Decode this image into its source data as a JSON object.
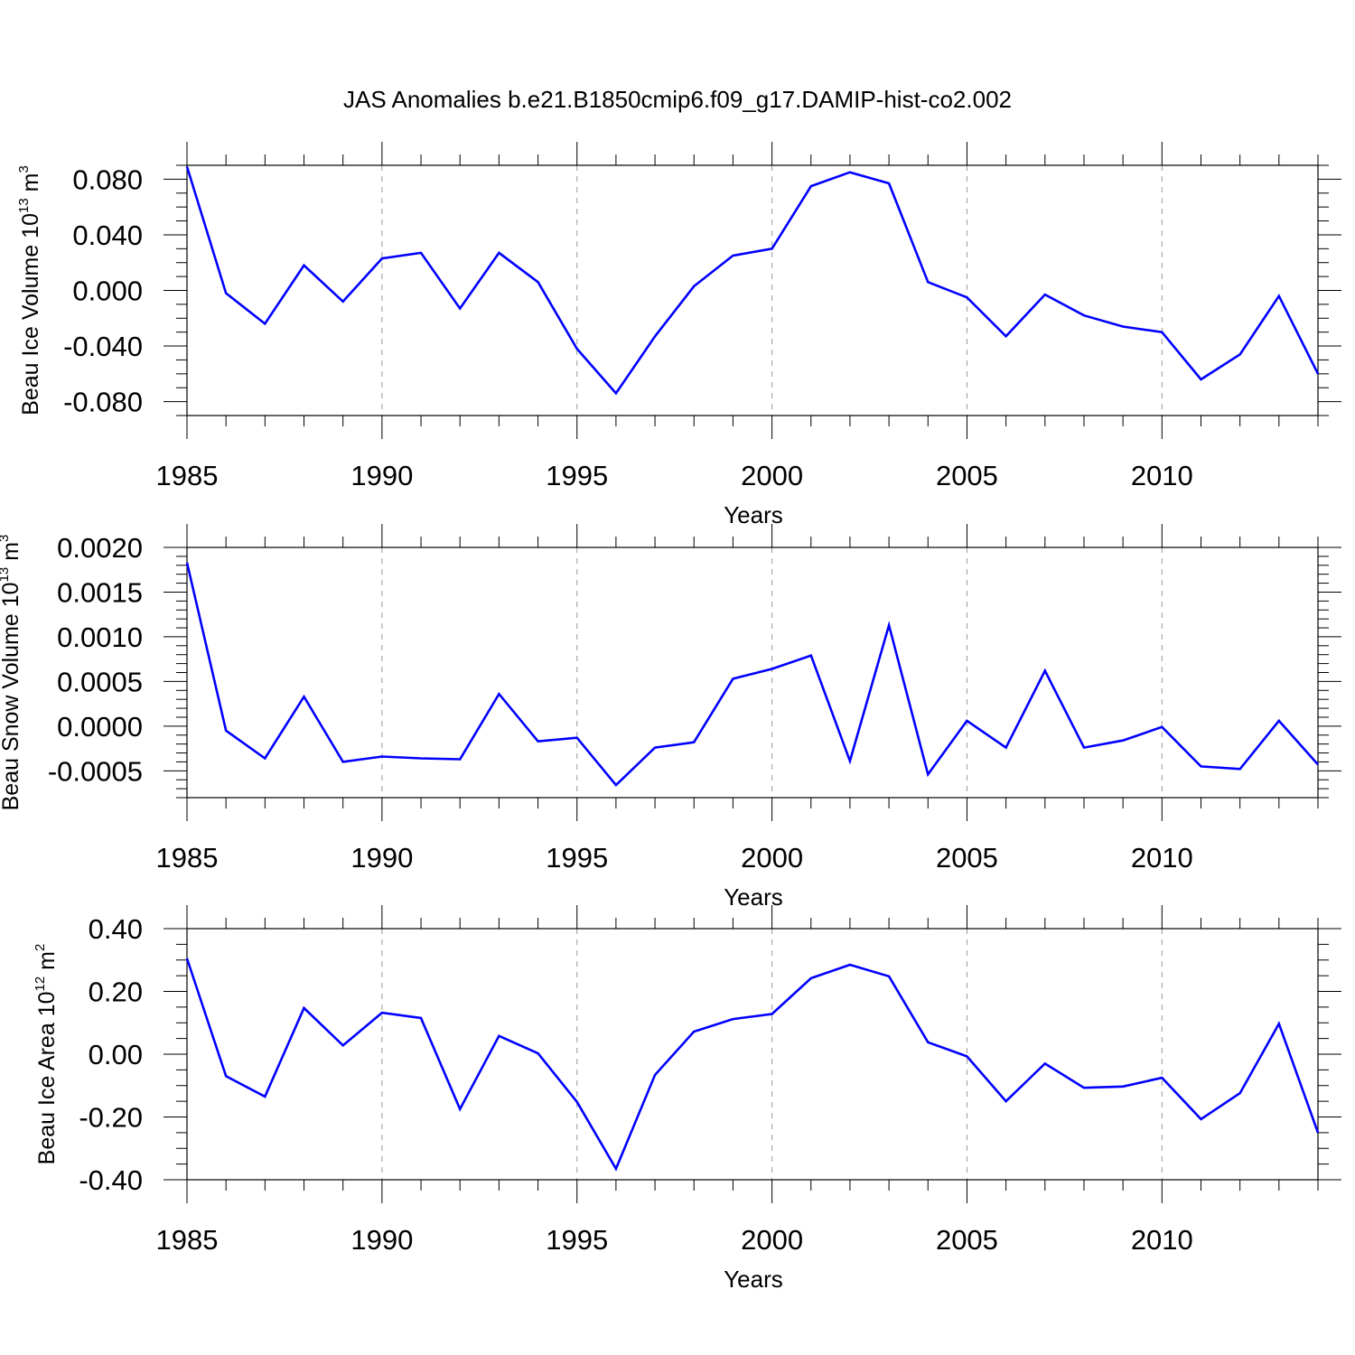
{
  "figure_title": "JAS Anomalies b.e21.B1850cmip6.f09_g17.DAMIP-hist-co2.002",
  "colors": {
    "line": "#0000ff",
    "axes": "#000000",
    "grid": "#9a9a9a"
  },
  "chart_data": [
    {
      "type": "line",
      "id": "ice-volume",
      "title": "",
      "xlabel": "Years",
      "ylabel": {
        "text": "Beau Ice Volume 10",
        "exponent": "13",
        "unit": " m",
        "unit_exponent": "3"
      },
      "xlim": [
        1985,
        2014
      ],
      "ylim": [
        -0.09,
        0.09
      ],
      "x_ticks": [
        1985,
        1990,
        1995,
        2000,
        2005,
        2010
      ],
      "x_tick_labels": [
        "1985",
        "1990",
        "1995",
        "2000",
        "2005",
        "2010"
      ],
      "y_ticks": [
        0.08,
        0.04,
        0.0,
        -0.04,
        -0.08
      ],
      "y_tick_labels": [
        "0.080",
        "0.040",
        "0.000",
        "-0.040",
        "-0.080"
      ],
      "y_minor_step": 0.01,
      "grid": "dashed vertical at major x ticks",
      "series": [
        {
          "name": "Beau Ice Volume",
          "x": [
            1985,
            1986,
            1987,
            1988,
            1989,
            1990,
            1991,
            1992,
            1993,
            1994,
            1995,
            1996,
            1997,
            1998,
            1999,
            2000,
            2001,
            2002,
            2003,
            2004,
            2005,
            2006,
            2007,
            2008,
            2009,
            2010,
            2011,
            2012,
            2013,
            2014
          ],
          "values": [
            0.089,
            -0.002,
            -0.024,
            0.018,
            -0.008,
            0.023,
            0.027,
            -0.013,
            0.027,
            0.006,
            -0.042,
            -0.074,
            -0.033,
            0.003,
            0.025,
            0.03,
            0.075,
            0.085,
            0.077,
            0.006,
            -0.005,
            -0.033,
            -0.003,
            -0.018,
            -0.026,
            -0.03,
            -0.064,
            -0.046,
            -0.004,
            -0.06
          ]
        }
      ]
    },
    {
      "type": "line",
      "id": "snow-volume",
      "title": "",
      "xlabel": "Years",
      "ylabel": {
        "text": "Beau Snow Volume 10",
        "exponent": "13",
        "unit": " m",
        "unit_exponent": "3"
      },
      "xlim": [
        1985,
        2014
      ],
      "ylim": [
        -0.0008,
        0.002
      ],
      "x_ticks": [
        1985,
        1990,
        1995,
        2000,
        2005,
        2010
      ],
      "x_tick_labels": [
        "1985",
        "1990",
        "1995",
        "2000",
        "2005",
        "2010"
      ],
      "y_ticks": [
        0.002,
        0.0015,
        0.001,
        0.0005,
        0.0,
        -0.0005
      ],
      "y_tick_labels": [
        "0.0020",
        "0.0015",
        "0.0010",
        "0.0005",
        "0.0000",
        "-0.0005"
      ],
      "y_minor_step": 0.0001,
      "grid": "dashed vertical at major x ticks",
      "series": [
        {
          "name": "Beau Snow Volume",
          "x": [
            1985,
            1986,
            1987,
            1988,
            1989,
            1990,
            1991,
            1992,
            1993,
            1994,
            1995,
            1996,
            1997,
            1998,
            1999,
            2000,
            2001,
            2002,
            2003,
            2004,
            2005,
            2006,
            2007,
            2008,
            2009,
            2010,
            2011,
            2012,
            2013,
            2014
          ],
          "values": [
            0.00183,
            -5e-05,
            -0.00036,
            0.00033,
            -0.0004,
            -0.00034,
            -0.00036,
            -0.00037,
            0.00036,
            -0.00017,
            -0.00013,
            -0.00066,
            -0.00024,
            -0.00018,
            0.00053,
            0.00064,
            0.00079,
            -0.00039,
            0.00113,
            -0.00054,
            6e-05,
            -0.00024,
            0.00062,
            -0.00024,
            -0.00016,
            -1e-05,
            -0.00045,
            -0.00048,
            6e-05,
            -0.00043
          ]
        }
      ]
    },
    {
      "type": "line",
      "id": "ice-area",
      "title": "",
      "xlabel": "Years",
      "ylabel": {
        "text": "Beau Ice Area 10",
        "exponent": "12",
        "unit": " m",
        "unit_exponent": "2"
      },
      "xlim": [
        1985,
        2014
      ],
      "ylim": [
        -0.4,
        0.4
      ],
      "x_ticks": [
        1985,
        1990,
        1995,
        2000,
        2005,
        2010
      ],
      "x_tick_labels": [
        "1985",
        "1990",
        "1995",
        "2000",
        "2005",
        "2010"
      ],
      "y_ticks": [
        0.4,
        0.2,
        0.0,
        -0.2,
        -0.4
      ],
      "y_tick_labels": [
        "0.40",
        "0.20",
        "0.00",
        "-0.20",
        "-0.40"
      ],
      "y_minor_step": 0.05,
      "grid": "dashed vertical at major x ticks",
      "series": [
        {
          "name": "Beau Ice Area",
          "x": [
            1985,
            1986,
            1987,
            1988,
            1989,
            1990,
            1991,
            1992,
            1993,
            1994,
            1995,
            1996,
            1997,
            1998,
            1999,
            2000,
            2001,
            2002,
            2003,
            2004,
            2005,
            2006,
            2007,
            2008,
            2009,
            2010,
            2011,
            2012,
            2013,
            2014
          ],
          "values": [
            0.305,
            -0.07,
            -0.135,
            0.147,
            0.028,
            0.132,
            0.115,
            -0.175,
            0.058,
            0.003,
            -0.152,
            -0.365,
            -0.066,
            0.072,
            0.112,
            0.128,
            0.242,
            0.285,
            0.248,
            0.038,
            -0.007,
            -0.15,
            -0.03,
            -0.107,
            -0.103,
            -0.075,
            -0.207,
            -0.124,
            0.097,
            -0.25
          ]
        }
      ]
    }
  ]
}
